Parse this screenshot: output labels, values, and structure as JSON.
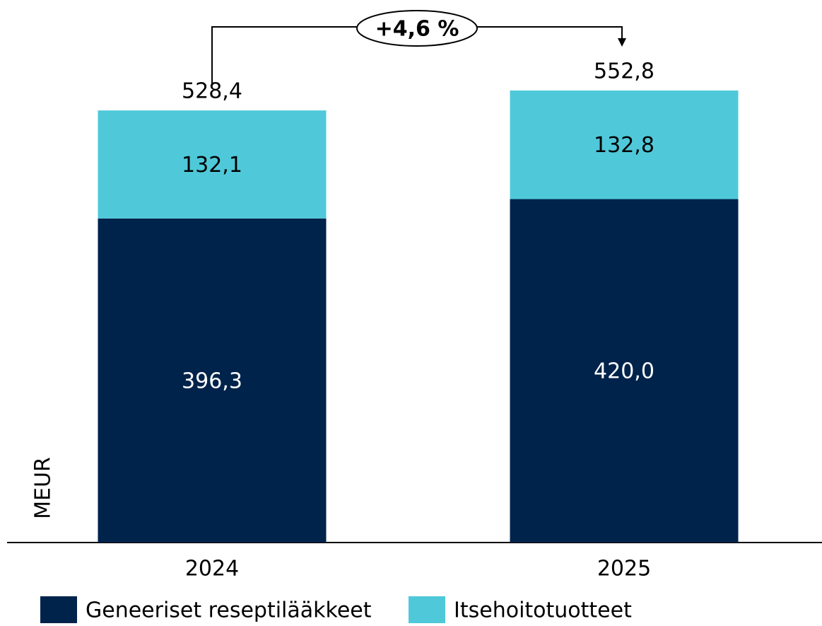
{
  "chart_data": {
    "type": "stacked_bar",
    "categories": [
      "2024",
      "2025"
    ],
    "series": [
      {
        "name": "Geneeriset reseptilääkkeet",
        "color": "#00234b",
        "values": [
          396.3,
          420.0
        ],
        "value_labels": [
          "396,3",
          "420,0"
        ],
        "label_color": "#ffffff"
      },
      {
        "name": "Itsehoitotuotteet",
        "color": "#4fc9d9",
        "values": [
          132.1,
          132.8
        ],
        "value_labels": [
          "132,1",
          "132,8"
        ],
        "label_color": "#000000"
      }
    ],
    "totals": [
      528.4,
      552.8
    ],
    "total_labels": [
      "528,4",
      "552,8"
    ],
    "ylabel": "MEUR",
    "annotation": "+4,6 %",
    "ylim": [
      0,
      660
    ]
  }
}
